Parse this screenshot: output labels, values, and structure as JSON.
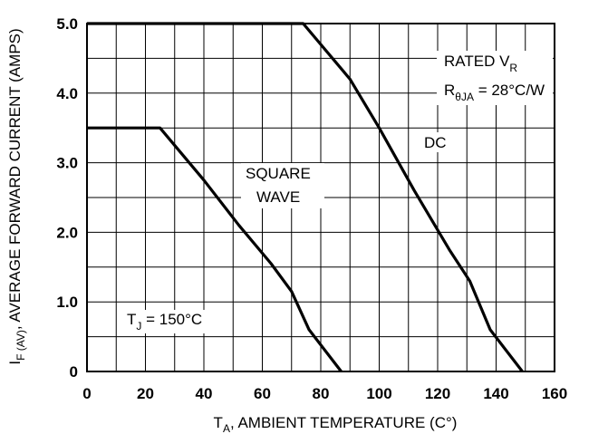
{
  "chart_data": {
    "type": "line",
    "xlabel": {
      "main": "T",
      "sub": "A",
      "rest": ", AMBIENT TEMPERATURE (C°)"
    },
    "ylabel": {
      "main": "I",
      "sub": "F (AV)",
      "rest": ", AVERAGE FORWARD CURRENT (AMPS)"
    },
    "xlim": [
      0,
      160
    ],
    "ylim": [
      0,
      5.0
    ],
    "x_ticks": [
      "0",
      "20",
      "40",
      "60",
      "80",
      "100",
      "120",
      "140",
      "160"
    ],
    "y_ticks": [
      "0",
      "1.0",
      "2.0",
      "3.0",
      "4.0",
      "5.0"
    ],
    "grid": true,
    "series": [
      {
        "name": "DC",
        "points": [
          [
            0,
            5.0
          ],
          [
            74,
            5.0
          ],
          [
            90,
            4.2
          ],
          [
            100,
            3.5
          ],
          [
            112,
            2.6
          ],
          [
            124,
            1.75
          ],
          [
            131,
            1.3
          ],
          [
            138,
            0.6
          ],
          [
            149,
            0
          ]
        ]
      },
      {
        "name": "SQUARE WAVE",
        "points": [
          [
            0,
            3.5
          ],
          [
            25,
            3.5
          ],
          [
            40,
            2.75
          ],
          [
            52,
            2.1
          ],
          [
            63,
            1.55
          ],
          [
            70,
            1.15
          ],
          [
            76,
            0.6
          ],
          [
            87,
            0
          ]
        ]
      }
    ],
    "annotations": {
      "rated_line1": {
        "main": "RATED V",
        "sub": "R"
      },
      "rated_line2": {
        "main": "R",
        "sub": "θJA",
        "rest": " = 28°C/W"
      },
      "dc": "DC",
      "square_line1": "SQUARE",
      "square_line2": "WAVE",
      "tj": {
        "main": "T",
        "sub": "J",
        "rest": " = 150°C"
      }
    }
  }
}
